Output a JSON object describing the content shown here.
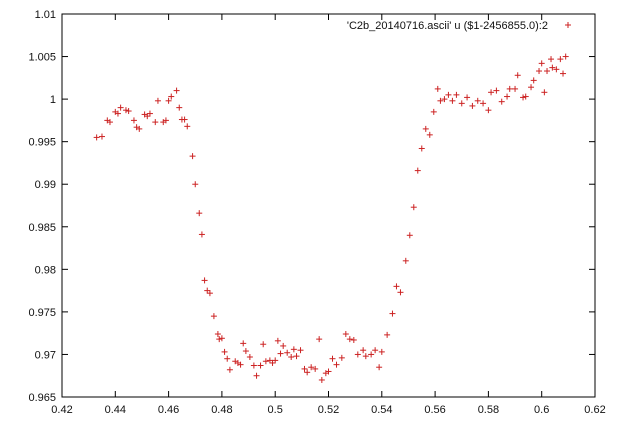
{
  "chart_data": {
    "type": "scatter",
    "title": "",
    "xlabel": "",
    "ylabel": "",
    "xlim": [
      0.42,
      0.62
    ],
    "ylim": [
      0.965,
      1.01
    ],
    "x_ticks": [
      "0.42",
      "0.44",
      "0.46",
      "0.48",
      "0.5",
      "0.52",
      "0.54",
      "0.56",
      "0.58",
      "0.6",
      "0.62"
    ],
    "y_ticks": [
      "0.965",
      "0.97",
      "0.975",
      "0.98",
      "0.985",
      "0.99",
      "0.995",
      "1",
      "1.005",
      "1.01"
    ],
    "grid": false,
    "legend_position": "top-right",
    "marker": "+",
    "series": [
      {
        "name": "'C2b_20140716.ascii' u ($1-2456855.0):2",
        "color": "#cc2222",
        "points": [
          [
            0.433,
            0.9955
          ],
          [
            0.435,
            0.9956
          ],
          [
            0.437,
            0.9975
          ],
          [
            0.438,
            0.9973
          ],
          [
            0.44,
            0.9985
          ],
          [
            0.441,
            0.9983
          ],
          [
            0.442,
            0.999
          ],
          [
            0.444,
            0.9987
          ],
          [
            0.445,
            0.9986
          ],
          [
            0.447,
            0.9975
          ],
          [
            0.448,
            0.9967
          ],
          [
            0.449,
            0.9965
          ],
          [
            0.451,
            0.9982
          ],
          [
            0.452,
            0.998
          ],
          [
            0.453,
            0.9983
          ],
          [
            0.455,
            0.9973
          ],
          [
            0.456,
            0.9998
          ],
          [
            0.458,
            0.9973
          ],
          [
            0.459,
            0.9975
          ],
          [
            0.46,
            0.9998
          ],
          [
            0.461,
            1.0003
          ],
          [
            0.463,
            1.001
          ],
          [
            0.464,
            0.999
          ],
          [
            0.465,
            0.9976
          ],
          [
            0.466,
            0.9976
          ],
          [
            0.467,
            0.9968
          ],
          [
            0.469,
            0.9933
          ],
          [
            0.47,
            0.99
          ],
          [
            0.4715,
            0.9866
          ],
          [
            0.4725,
            0.9841
          ],
          [
            0.4735,
            0.9787
          ],
          [
            0.4745,
            0.9775
          ],
          [
            0.4755,
            0.9772
          ],
          [
            0.477,
            0.9745
          ],
          [
            0.4785,
            0.9724
          ],
          [
            0.479,
            0.9718
          ],
          [
            0.48,
            0.9719
          ],
          [
            0.481,
            0.9703
          ],
          [
            0.482,
            0.9695
          ],
          [
            0.483,
            0.9682
          ],
          [
            0.485,
            0.9692
          ],
          [
            0.486,
            0.969
          ],
          [
            0.487,
            0.9688
          ],
          [
            0.488,
            0.9713
          ],
          [
            0.489,
            0.9704
          ],
          [
            0.4905,
            0.9697
          ],
          [
            0.492,
            0.9687
          ],
          [
            0.493,
            0.9675
          ],
          [
            0.4945,
            0.9687
          ],
          [
            0.4955,
            0.9712
          ],
          [
            0.4965,
            0.9692
          ],
          [
            0.498,
            0.9693
          ],
          [
            0.499,
            0.969
          ],
          [
            0.5,
            0.9693
          ],
          [
            0.501,
            0.9716
          ],
          [
            0.502,
            0.9701
          ],
          [
            0.503,
            0.971
          ],
          [
            0.5045,
            0.9702
          ],
          [
            0.506,
            0.9697
          ],
          [
            0.507,
            0.9706
          ],
          [
            0.508,
            0.9698
          ],
          [
            0.5095,
            0.9705
          ],
          [
            0.511,
            0.9683
          ],
          [
            0.512,
            0.9679
          ],
          [
            0.5135,
            0.9685
          ],
          [
            0.515,
            0.9683
          ],
          [
            0.5165,
            0.9718
          ],
          [
            0.5175,
            0.967
          ],
          [
            0.519,
            0.9678
          ],
          [
            0.52,
            0.968
          ],
          [
            0.5215,
            0.9695
          ],
          [
            0.523,
            0.9688
          ],
          [
            0.525,
            0.9696
          ],
          [
            0.5265,
            0.9724
          ],
          [
            0.528,
            0.9718
          ],
          [
            0.5295,
            0.9717
          ],
          [
            0.531,
            0.97
          ],
          [
            0.533,
            0.9705
          ],
          [
            0.534,
            0.9698
          ],
          [
            0.536,
            0.97
          ],
          [
            0.5375,
            0.9705
          ],
          [
            0.539,
            0.9685
          ],
          [
            0.54,
            0.9703
          ],
          [
            0.542,
            0.9723
          ],
          [
            0.544,
            0.9748
          ],
          [
            0.5455,
            0.978
          ],
          [
            0.547,
            0.9773
          ],
          [
            0.549,
            0.981
          ],
          [
            0.5505,
            0.984
          ],
          [
            0.552,
            0.9873
          ],
          [
            0.5535,
            0.9916
          ],
          [
            0.555,
            0.9942
          ],
          [
            0.5565,
            0.9965
          ],
          [
            0.558,
            0.9958
          ],
          [
            0.5595,
            0.9985
          ],
          [
            0.561,
            1.0012
          ],
          [
            0.562,
            0.9998
          ],
          [
            0.5635,
            1.0
          ],
          [
            0.565,
            1.0005
          ],
          [
            0.5665,
            0.9998
          ],
          [
            0.568,
            1.0005
          ],
          [
            0.57,
            0.9995
          ],
          [
            0.572,
            1.0002
          ],
          [
            0.574,
            0.9992
          ],
          [
            0.576,
            0.9998
          ],
          [
            0.578,
            0.9995
          ],
          [
            0.58,
            0.9987
          ],
          [
            0.581,
            1.0008
          ],
          [
            0.583,
            1.001
          ],
          [
            0.585,
            0.9997
          ],
          [
            0.587,
            1.0003
          ],
          [
            0.588,
            1.0012
          ],
          [
            0.59,
            1.0012
          ],
          [
            0.591,
            1.0028
          ],
          [
            0.593,
            1.0002
          ],
          [
            0.594,
            1.0003
          ],
          [
            0.596,
            1.0014
          ],
          [
            0.597,
            1.0022
          ],
          [
            0.599,
            1.0033
          ],
          [
            0.6,
            1.0042
          ],
          [
            0.601,
            1.0008
          ],
          [
            0.602,
            1.0033
          ],
          [
            0.6035,
            1.0047
          ],
          [
            0.604,
            1.0037
          ],
          [
            0.6055,
            1.0035
          ],
          [
            0.607,
            1.0047
          ],
          [
            0.608,
            1.003
          ],
          [
            0.609,
            1.005
          ]
        ]
      }
    ]
  }
}
